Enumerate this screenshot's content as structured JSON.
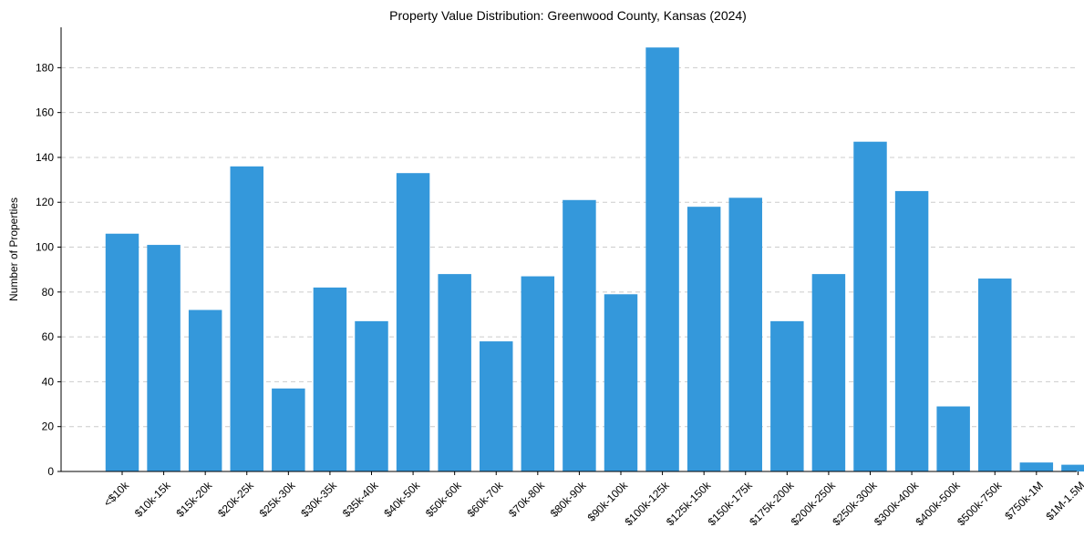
{
  "chart_data": {
    "type": "bar",
    "title": "Property Value Distribution: Greenwood County, Kansas (2024)",
    "xlabel": "",
    "ylabel": "Number of Properties",
    "categories": [
      "<$10k",
      "$10k-15k",
      "$15k-20k",
      "$20k-25k",
      "$25k-30k",
      "$30k-35k",
      "$35k-40k",
      "$40k-50k",
      "$50k-60k",
      "$60k-70k",
      "$70k-80k",
      "$80k-90k",
      "$90k-100k",
      "$100k-125k",
      "$125k-150k",
      "$150k-175k",
      "$175k-200k",
      "$200k-250k",
      "$250k-300k",
      "$300k-400k",
      "$400k-500k",
      "$500k-750k",
      "$750k-1M",
      "$1M-1.5M"
    ],
    "values": [
      106,
      101,
      72,
      136,
      37,
      82,
      67,
      133,
      88,
      58,
      87,
      121,
      79,
      189,
      118,
      122,
      67,
      88,
      147,
      125,
      29,
      86,
      4,
      3
    ],
    "ylim": [
      0,
      198
    ],
    "yticks": [
      0,
      20,
      40,
      60,
      80,
      100,
      120,
      140,
      160,
      180
    ],
    "grid": "y-dashed",
    "bar_color": "#3498db",
    "grid_color": "#cccccc",
    "axis_color": "#000000"
  }
}
